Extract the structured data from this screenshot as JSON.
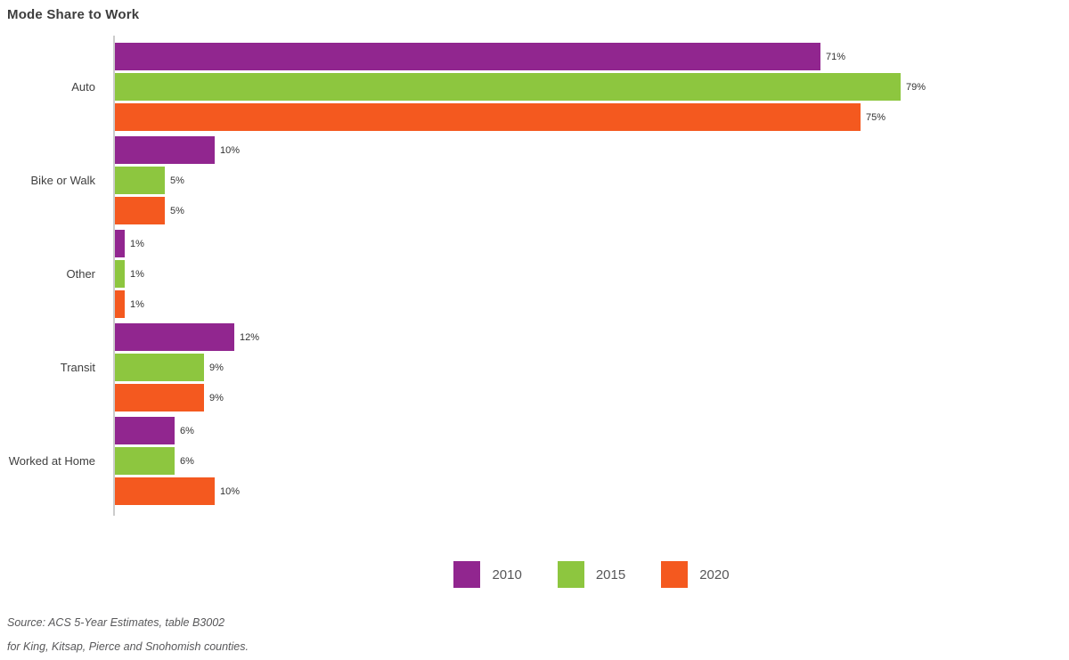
{
  "title": "Mode Share to Work",
  "chart_data": {
    "type": "bar",
    "orientation": "horizontal",
    "title": "Mode Share to Work",
    "categories": [
      "Auto",
      "Bike or Walk",
      "Other",
      "Transit",
      "Worked at Home"
    ],
    "series": [
      {
        "name": "2010",
        "color": "#91268f",
        "values": [
          71,
          10,
          1,
          12,
          6
        ]
      },
      {
        "name": "2015",
        "color": "#8dc63f",
        "values": [
          79,
          5,
          1,
          9,
          6
        ]
      },
      {
        "name": "2020",
        "color": "#f4591f",
        "values": [
          75,
          5,
          1,
          9,
          10
        ]
      }
    ],
    "value_suffix": "%",
    "xlim": [
      0,
      85
    ],
    "grid": false,
    "legend_position": "bottom-center",
    "axis_color": "#cccccc"
  },
  "legend": {
    "items": [
      {
        "label": "2010",
        "color": "#91268f"
      },
      {
        "label": "2015",
        "color": "#8dc63f"
      },
      {
        "label": "2020",
        "color": "#f4591f"
      }
    ]
  },
  "source": {
    "line1": "Source: ACS 5-Year Estimates, table B3002",
    "line2": "for King, Kitsap, Pierce and Snohomish counties."
  }
}
